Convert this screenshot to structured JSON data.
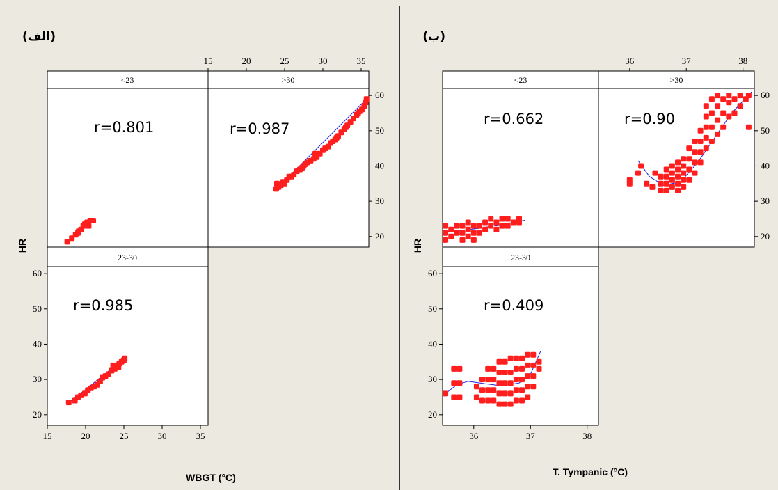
{
  "chart_data": [
    {
      "panel_label": "(الف)",
      "type": "scatter",
      "xlabel": "WBGT (°C)",
      "ylabel": "HR",
      "xlim": [
        15,
        36
      ],
      "ylim": [
        17,
        62
      ],
      "xticks": [
        15,
        20,
        25,
        30,
        35
      ],
      "yticks": [
        20,
        30,
        40,
        50,
        60
      ],
      "panels": [
        {
          "strip": "<23",
          "r_text": "r=0.801",
          "points": [
            [
              17.6,
              18.5
            ],
            [
              18.2,
              19.5
            ],
            [
              18.7,
              20.5
            ],
            [
              19.1,
              21.5
            ],
            [
              19.4,
              22
            ],
            [
              19.7,
              23
            ],
            [
              19.9,
              23.5
            ],
            [
              20.2,
              24
            ],
            [
              20.6,
              24.5
            ],
            [
              21.0,
              24.5
            ],
            [
              19.0,
              21
            ],
            [
              20.4,
              23
            ]
          ],
          "fit": [
            [
              17.5,
              18.2
            ],
            [
              21.2,
              25.2
            ]
          ]
        },
        {
          "strip": ">30",
          "r_text": "r=0.987",
          "points": [
            [
              23.9,
              33.5
            ],
            [
              24.0,
              35
            ],
            [
              24.2,
              34
            ],
            [
              24.5,
              34.5
            ],
            [
              24.8,
              35.5
            ],
            [
              25.0,
              35
            ],
            [
              25.3,
              36
            ],
            [
              25.6,
              37
            ],
            [
              25.9,
              37
            ],
            [
              26.2,
              37.5
            ],
            [
              26.6,
              38.5
            ],
            [
              27.0,
              39
            ],
            [
              27.3,
              39.5
            ],
            [
              27.7,
              40.5
            ],
            [
              28.0,
              41
            ],
            [
              28.4,
              41.5
            ],
            [
              28.8,
              42
            ],
            [
              29.2,
              42.5
            ],
            [
              29.6,
              43.5
            ],
            [
              30.0,
              44.5
            ],
            [
              30.3,
              45
            ],
            [
              30.7,
              45.5
            ],
            [
              31.0,
              46.5
            ],
            [
              31.3,
              47
            ],
            [
              31.6,
              47.5
            ],
            [
              32.0,
              48.5
            ],
            [
              32.4,
              49.5
            ],
            [
              32.8,
              50.5
            ],
            [
              33.2,
              51.5
            ],
            [
              33.6,
              52.5
            ],
            [
              34.0,
              53.5
            ],
            [
              34.4,
              54.5
            ],
            [
              34.8,
              55.5
            ],
            [
              35.1,
              56
            ],
            [
              35.4,
              57
            ],
            [
              35.6,
              58
            ],
            [
              35.7,
              59
            ],
            [
              27.5,
              40
            ],
            [
              29.0,
              43.5
            ],
            [
              31.8,
              48
            ],
            [
              33.0,
              51
            ],
            [
              34.6,
              55
            ]
          ],
          "fit": [
            [
              23.8,
              33.2
            ],
            [
              35.8,
              59.2
            ]
          ]
        },
        {
          "strip": "23-30",
          "r_text": "r=0.985",
          "points": [
            [
              17.8,
              23.5
            ],
            [
              18.6,
              24
            ],
            [
              19.0,
              25
            ],
            [
              19.4,
              25.5
            ],
            [
              19.9,
              26
            ],
            [
              20.3,
              27
            ],
            [
              20.7,
              27.5
            ],
            [
              21.1,
              28
            ],
            [
              21.5,
              28.5
            ],
            [
              21.9,
              29.5
            ],
            [
              22.2,
              30.5
            ],
            [
              22.6,
              31
            ],
            [
              23.0,
              31.5
            ],
            [
              23.4,
              32.5
            ],
            [
              23.8,
              33
            ],
            [
              24.1,
              34
            ],
            [
              24.4,
              34.5
            ],
            [
              24.7,
              35
            ],
            [
              25.0,
              35.5
            ],
            [
              25.1,
              36
            ],
            [
              23.6,
              34
            ],
            [
              24.3,
              33.5
            ]
          ],
          "fit": [
            [
              17.7,
              23.2
            ],
            [
              25.2,
              36.2
            ]
          ]
        }
      ]
    },
    {
      "panel_label": "(ب)",
      "type": "scatter",
      "xlabel": "T. Tympanic (°C)",
      "ylabel": "HR",
      "xlim": [
        35.45,
        38.2
      ],
      "ylim": [
        17,
        62
      ],
      "xticks": [
        36,
        37,
        38
      ],
      "yticks": [
        20,
        30,
        40,
        50,
        60
      ],
      "panels": [
        {
          "strip": "<23",
          "r_text": "r=0.662",
          "points": [
            [
              35.5,
              19
            ],
            [
              35.5,
              21
            ],
            [
              35.5,
              23
            ],
            [
              35.6,
              20
            ],
            [
              35.6,
              22
            ],
            [
              35.7,
              21
            ],
            [
              35.7,
              23
            ],
            [
              35.8,
              19
            ],
            [
              35.8,
              21
            ],
            [
              35.8,
              23
            ],
            [
              35.9,
              20
            ],
            [
              35.9,
              22
            ],
            [
              35.9,
              24
            ],
            [
              36.0,
              19
            ],
            [
              36.0,
              21
            ],
            [
              36.0,
              23
            ],
            [
              36.1,
              21
            ],
            [
              36.1,
              23
            ],
            [
              36.2,
              22
            ],
            [
              36.2,
              24
            ],
            [
              36.3,
              23
            ],
            [
              36.3,
              25
            ],
            [
              36.4,
              22
            ],
            [
              36.4,
              24
            ],
            [
              36.5,
              23
            ],
            [
              36.5,
              25
            ],
            [
              36.6,
              23
            ],
            [
              36.6,
              25
            ],
            [
              36.7,
              24
            ],
            [
              36.8,
              24
            ],
            [
              36.8,
              25
            ]
          ],
          "fit": [
            [
              35.5,
              21.4
            ],
            [
              35.8,
              21.8
            ],
            [
              36.1,
              22.3
            ],
            [
              36.4,
              23.2
            ],
            [
              36.7,
              24
            ],
            [
              36.9,
              24.6
            ]
          ]
        },
        {
          "strip": ">30",
          "r_text": "r=0.90",
          "points": [
            [
              36.0,
              35
            ],
            [
              36.0,
              36
            ],
            [
              36.15,
              38
            ],
            [
              36.2,
              40
            ],
            [
              36.3,
              35
            ],
            [
              36.4,
              34
            ],
            [
              36.45,
              38
            ],
            [
              36.55,
              33
            ],
            [
              36.55,
              35
            ],
            [
              36.55,
              37
            ],
            [
              36.65,
              33
            ],
            [
              36.65,
              35
            ],
            [
              36.65,
              37
            ],
            [
              36.65,
              39
            ],
            [
              36.75,
              34
            ],
            [
              36.75,
              36
            ],
            [
              36.75,
              38
            ],
            [
              36.75,
              40
            ],
            [
              36.85,
              33
            ],
            [
              36.85,
              35
            ],
            [
              36.85,
              37
            ],
            [
              36.85,
              39
            ],
            [
              36.85,
              41
            ],
            [
              36.95,
              34
            ],
            [
              36.95,
              36
            ],
            [
              36.95,
              38
            ],
            [
              36.95,
              40
            ],
            [
              36.95,
              42
            ],
            [
              37.05,
              36
            ],
            [
              37.05,
              39
            ],
            [
              37.05,
              42
            ],
            [
              37.05,
              45
            ],
            [
              37.15,
              38
            ],
            [
              37.15,
              41
            ],
            [
              37.15,
              44
            ],
            [
              37.15,
              47
            ],
            [
              37.25,
              41
            ],
            [
              37.25,
              44
            ],
            [
              37.25,
              47
            ],
            [
              37.25,
              50
            ],
            [
              37.35,
              45
            ],
            [
              37.35,
              48
            ],
            [
              37.35,
              51
            ],
            [
              37.35,
              54
            ],
            [
              37.35,
              57
            ],
            [
              37.45,
              47
            ],
            [
              37.45,
              51
            ],
            [
              37.45,
              55
            ],
            [
              37.45,
              59
            ],
            [
              37.55,
              49
            ],
            [
              37.55,
              53
            ],
            [
              37.55,
              57
            ],
            [
              37.55,
              60
            ],
            [
              37.65,
              51
            ],
            [
              37.65,
              55
            ],
            [
              37.65,
              59
            ],
            [
              37.75,
              54
            ],
            [
              37.75,
              58
            ],
            [
              37.75,
              60
            ],
            [
              37.85,
              55
            ],
            [
              37.85,
              59
            ],
            [
              37.95,
              57
            ],
            [
              37.95,
              60
            ],
            [
              38.05,
              59
            ],
            [
              38.1,
              60
            ],
            [
              38.1,
              51
            ]
          ],
          "fit": [
            [
              36.15,
              41.5
            ],
            [
              36.35,
              37
            ],
            [
              36.6,
              34.5
            ],
            [
              36.9,
              35.5
            ],
            [
              37.2,
              41
            ],
            [
              37.5,
              48
            ],
            [
              37.8,
              55
            ],
            [
              38.15,
              61
            ]
          ]
        },
        {
          "strip": "23-30",
          "r_text": "r=0.409",
          "points": [
            [
              35.5,
              26
            ],
            [
              35.65,
              25
            ],
            [
              35.65,
              29
            ],
            [
              35.65,
              33
            ],
            [
              35.75,
              25
            ],
            [
              35.75,
              29
            ],
            [
              35.75,
              33
            ],
            [
              36.05,
              25
            ],
            [
              36.05,
              28
            ],
            [
              36.15,
              24
            ],
            [
              36.15,
              27
            ],
            [
              36.15,
              30
            ],
            [
              36.25,
              24
            ],
            [
              36.25,
              27
            ],
            [
              36.25,
              30
            ],
            [
              36.25,
              33
            ],
            [
              36.35,
              24
            ],
            [
              36.35,
              27
            ],
            [
              36.35,
              30
            ],
            [
              36.35,
              33
            ],
            [
              36.45,
              23
            ],
            [
              36.45,
              26
            ],
            [
              36.45,
              29
            ],
            [
              36.45,
              32
            ],
            [
              36.45,
              35
            ],
            [
              36.55,
              23
            ],
            [
              36.55,
              26
            ],
            [
              36.55,
              29
            ],
            [
              36.55,
              32
            ],
            [
              36.55,
              35
            ],
            [
              36.65,
              23
            ],
            [
              36.65,
              26
            ],
            [
              36.65,
              29
            ],
            [
              36.65,
              32
            ],
            [
              36.65,
              36
            ],
            [
              36.75,
              24
            ],
            [
              36.75,
              27
            ],
            [
              36.75,
              30
            ],
            [
              36.75,
              33
            ],
            [
              36.75,
              36
            ],
            [
              36.85,
              24
            ],
            [
              36.85,
              27
            ],
            [
              36.85,
              30
            ],
            [
              36.85,
              33
            ],
            [
              36.85,
              36
            ],
            [
              36.95,
              25
            ],
            [
              36.95,
              28
            ],
            [
              36.95,
              31
            ],
            [
              36.95,
              34
            ],
            [
              36.95,
              37
            ],
            [
              37.05,
              28
            ],
            [
              37.05,
              31
            ],
            [
              37.05,
              34
            ],
            [
              37.05,
              37
            ],
            [
              37.15,
              33
            ],
            [
              37.15,
              35
            ]
          ],
          "fit": [
            [
              35.5,
              26
            ],
            [
              35.7,
              28.5
            ],
            [
              35.9,
              29.5
            ],
            [
              36.2,
              28.8
            ],
            [
              36.5,
              28.2
            ],
            [
              36.8,
              29
            ],
            [
              37.0,
              31.5
            ],
            [
              37.18,
              38
            ]
          ]
        }
      ]
    }
  ],
  "figure": {
    "divider_color": "#333333",
    "point_color": "#ff1e1e",
    "fit_color": "#2020e0",
    "background": "#ece9e1"
  }
}
